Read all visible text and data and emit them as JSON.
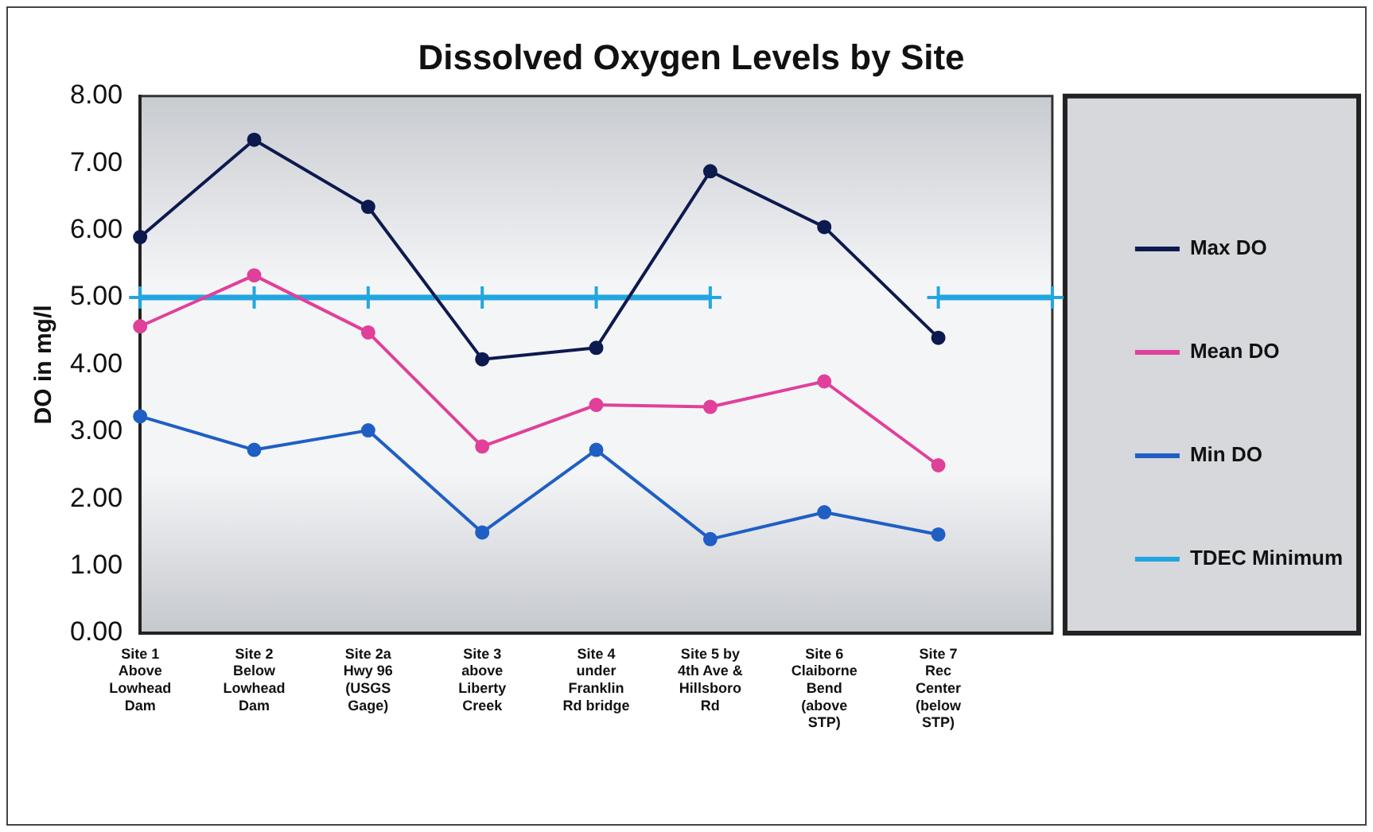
{
  "chart_data": {
    "type": "line",
    "title": "Dissolved Oxygen Levels by Site",
    "ylabel": "DO in mg/l",
    "categories": [
      "Site 1 Above Lowhead Dam",
      "Site 2 Below Lowhead Dam",
      "Site 2a Hwy 96 (USGS Gage)",
      "Site 3 above Liberty Creek",
      "Site 4 under Franklin Rd bridge",
      "Site 5 by 4th Ave & Hillsboro Rd",
      "Site 6 Claiborne Bend (above STP)",
      "Site 7 Rec Center (below STP)",
      null
    ],
    "series": [
      {
        "name": "Max DO",
        "color": "#0d1a4f",
        "marker": "circle",
        "values": [
          5.9,
          7.35,
          6.35,
          4.08,
          4.25,
          6.88,
          6.05,
          4.4,
          null
        ]
      },
      {
        "name": "Mean DO",
        "color": "#e0409a",
        "marker": "circle",
        "values": [
          4.57,
          5.33,
          4.48,
          2.78,
          3.4,
          3.37,
          3.75,
          2.5,
          null
        ]
      },
      {
        "name": "Min DO",
        "color": "#1f5fc4",
        "marker": "circle",
        "values": [
          3.23,
          2.73,
          3.02,
          1.5,
          2.73,
          1.4,
          1.8,
          1.47,
          null
        ]
      },
      {
        "name": "TDEC Minimum",
        "color": "#22a6e0",
        "marker": "cross",
        "values": [
          5,
          5,
          5,
          5,
          5,
          5,
          null,
          5,
          5
        ]
      }
    ],
    "ylim": [
      0,
      8
    ],
    "yticks": [
      {
        "value": 0,
        "label": "0.00"
      },
      {
        "value": 1,
        "label": "1.00"
      },
      {
        "value": 2,
        "label": "2.00"
      },
      {
        "value": 3,
        "label": "3.00"
      },
      {
        "value": 4,
        "label": "4.00"
      },
      {
        "value": 5,
        "label": "5.00"
      },
      {
        "value": 6,
        "label": "6.00"
      },
      {
        "value": 7,
        "label": "7.00"
      },
      {
        "value": 8,
        "label": "8.00"
      }
    ],
    "grid": false,
    "legend": "right"
  }
}
